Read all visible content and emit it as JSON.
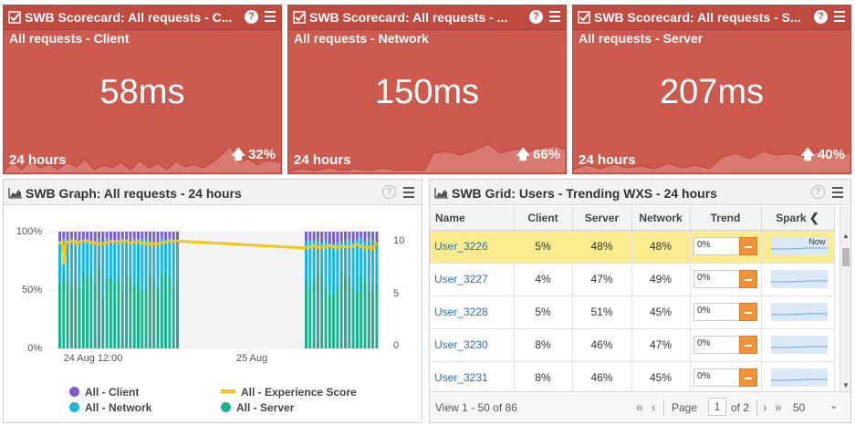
{
  "cards": [
    {
      "title": "SWB Scorecard: All requests - C...",
      "subtitle": "All requests - Client",
      "value": "58ms",
      "period": "24 hours",
      "change": "32%"
    },
    {
      "title": "SWB Scorecard: All requests - ...",
      "subtitle": "All requests - Network",
      "value": "150ms",
      "period": "24 hours",
      "change": "66%"
    },
    {
      "title": "SWB Scorecard: All requests - S...",
      "subtitle": "All requests - Server",
      "value": "207ms",
      "period": "24 hours",
      "change": "40%"
    }
  ],
  "card_help": "?",
  "graph": {
    "title": "SWB Graph: All requests - 24 hours",
    "help": "?",
    "left_ticks": [
      "100%",
      "50%",
      "0%"
    ],
    "right_ticks": [
      "10",
      "5",
      "0"
    ],
    "x_ticks": [
      "24 Aug 12:00",
      "25 Aug"
    ],
    "legend": {
      "client": "All - Client",
      "network": "All - Network",
      "experience": "All - Experience Score",
      "server": "All - Server"
    }
  },
  "chart_data": {
    "type": "bar",
    "xlabel": "",
    "ylabel": "",
    "ylim": [
      0,
      100
    ],
    "y2lim": [
      0,
      10
    ],
    "x_ticks": [
      "24 Aug 12:00",
      "25 Aug"
    ],
    "series": [
      {
        "name": "All - Client",
        "color": "#7a5fc6",
        "values_pct_range": [
          5,
          10
        ]
      },
      {
        "name": "All - Network",
        "color": "#1fb4dc",
        "values_pct_range": [
          25,
          45
        ]
      },
      {
        "name": "All - Server",
        "color": "#1fb08f",
        "values_pct_range": [
          50,
          65
        ]
      },
      {
        "name": "All - Experience Score",
        "color": "#f5c518",
        "axis": "right",
        "approx_values": [
          9.0,
          9.2,
          9.3,
          9.3,
          9.2,
          8.6,
          9.1,
          9.2,
          9.3
        ]
      }
    ],
    "grid": true,
    "legend": "bottom"
  },
  "grid": {
    "title": "SWB Grid: Users - Trending WXS - 24 hours",
    "help": "?",
    "columns": [
      "Name",
      "Client",
      "Server",
      "Network",
      "Trend",
      "Spark"
    ],
    "rows": [
      {
        "name": "User_3226",
        "client": "5%",
        "server": "48%",
        "network": "48%",
        "trend": "0%",
        "spark": "Now",
        "selected": true
      },
      {
        "name": "User_3227",
        "client": "4%",
        "server": "47%",
        "network": "49%",
        "trend": "0%"
      },
      {
        "name": "User_3228",
        "client": "5%",
        "server": "51%",
        "network": "45%",
        "trend": "0%"
      },
      {
        "name": "User_3230",
        "client": "8%",
        "server": "46%",
        "network": "47%",
        "trend": "0%"
      },
      {
        "name": "User_3231",
        "client": "8%",
        "server": "46%",
        "network": "45%",
        "trend": "0%"
      }
    ],
    "pager": {
      "view": "View 1 - 50 of 86",
      "page_label": "Page",
      "page_value": "1",
      "of": "of 2",
      "page_size": "50"
    }
  },
  "colors": {
    "card_bg": "#cd5a4e",
    "client": "#7a5fc6",
    "network": "#1fb4dc",
    "server": "#1fb08f",
    "experience": "#f5c518",
    "selected_row": "#faeb8f",
    "trend_button": "#f0923a"
  }
}
